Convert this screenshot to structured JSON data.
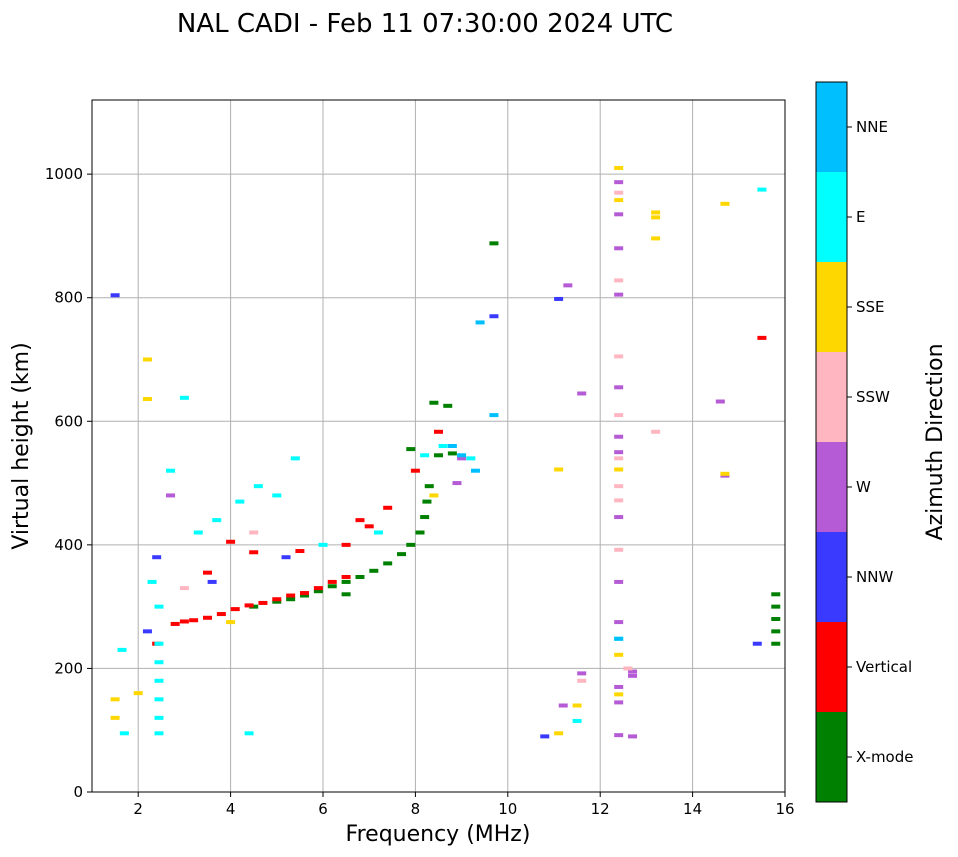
{
  "chart_data": {
    "type": "scatter",
    "title": "NAL CADI - Feb 11 07:30:00 2024 UTC",
    "xlabel": "Frequency (MHz)",
    "ylabel": "Virtual height (km)",
    "xlim": [
      1,
      16
    ],
    "ylim": [
      0,
      1120
    ],
    "xticks": [
      2,
      4,
      6,
      8,
      10,
      12,
      14,
      16
    ],
    "yticks": [
      0,
      200,
      400,
      600,
      800,
      1000
    ],
    "grid": true,
    "colorbar": {
      "label": "Azimuth Direction",
      "categories": [
        {
          "name": "X-mode",
          "color": "#008000"
        },
        {
          "name": "Vertical",
          "color": "#ff0000"
        },
        {
          "name": "NNW",
          "color": "#3a3aff"
        },
        {
          "name": "W",
          "color": "#b65bd6"
        },
        {
          "name": "SSW",
          "color": "#ffb6c1"
        },
        {
          "name": "SSE",
          "color": "#ffd700"
        },
        {
          "name": "E",
          "color": "#00ffff"
        },
        {
          "name": "NNE",
          "color": "#00bfff"
        }
      ]
    },
    "series": [
      {
        "name": "X-mode",
        "points": [
          [
            5.0,
            308
          ],
          [
            5.3,
            312
          ],
          [
            5.6,
            318
          ],
          [
            5.9,
            325
          ],
          [
            6.2,
            333
          ],
          [
            6.5,
            340
          ],
          [
            6.8,
            348
          ],
          [
            7.1,
            358
          ],
          [
            7.4,
            370
          ],
          [
            7.7,
            385
          ],
          [
            7.9,
            400
          ],
          [
            8.1,
            420
          ],
          [
            8.2,
            445
          ],
          [
            8.25,
            470
          ],
          [
            8.3,
            495
          ],
          [
            8.5,
            545
          ],
          [
            8.8,
            548
          ],
          [
            8.4,
            630
          ],
          [
            8.7,
            625
          ],
          [
            9.7,
            888
          ],
          [
            15.8,
            240
          ],
          [
            15.8,
            260
          ],
          [
            15.8,
            280
          ],
          [
            15.8,
            300
          ],
          [
            15.8,
            320
          ],
          [
            4.5,
            300
          ],
          [
            6.5,
            320
          ],
          [
            7.9,
            555
          ]
        ]
      },
      {
        "name": "Vertical",
        "points": [
          [
            2.8,
            272
          ],
          [
            3.0,
            276
          ],
          [
            3.2,
            278
          ],
          [
            3.5,
            282
          ],
          [
            3.8,
            288
          ],
          [
            4.1,
            296
          ],
          [
            4.4,
            302
          ],
          [
            4.7,
            306
          ],
          [
            5.0,
            312
          ],
          [
            5.3,
            318
          ],
          [
            5.6,
            322
          ],
          [
            5.9,
            330
          ],
          [
            6.2,
            340
          ],
          [
            6.5,
            348
          ],
          [
            3.5,
            355
          ],
          [
            4.5,
            388
          ],
          [
            5.5,
            390
          ],
          [
            6.5,
            400
          ],
          [
            7.0,
            430
          ],
          [
            7.4,
            460
          ],
          [
            8.0,
            520
          ],
          [
            8.5,
            583
          ],
          [
            15.5,
            735
          ],
          [
            2.4,
            240
          ],
          [
            4.0,
            405
          ],
          [
            6.8,
            440
          ]
        ]
      },
      {
        "name": "NNW",
        "points": [
          [
            1.5,
            804
          ],
          [
            2.4,
            380
          ],
          [
            5.2,
            380
          ],
          [
            9.7,
            770
          ],
          [
            10.8,
            90
          ],
          [
            15.4,
            240
          ],
          [
            11.1,
            798
          ],
          [
            2.2,
            260
          ],
          [
            3.6,
            340
          ]
        ]
      },
      {
        "name": "W",
        "points": [
          [
            12.4,
            987
          ],
          [
            12.4,
            935
          ],
          [
            12.4,
            880
          ],
          [
            12.4,
            805
          ],
          [
            12.4,
            655
          ],
          [
            12.4,
            575
          ],
          [
            12.4,
            550
          ],
          [
            12.4,
            445
          ],
          [
            12.4,
            340
          ],
          [
            12.4,
            275
          ],
          [
            12.4,
            170
          ],
          [
            12.4,
            145
          ],
          [
            12.4,
            92
          ],
          [
            12.7,
            90
          ],
          [
            12.7,
            195
          ],
          [
            12.7,
            188
          ],
          [
            14.6,
            632
          ],
          [
            14.7,
            512
          ],
          [
            11.3,
            820
          ],
          [
            11.6,
            645
          ],
          [
            11.6,
            192
          ],
          [
            8.9,
            500
          ],
          [
            9.0,
            540
          ],
          [
            2.7,
            480
          ],
          [
            11.2,
            140
          ]
        ]
      },
      {
        "name": "SSW",
        "points": [
          [
            12.4,
            970
          ],
          [
            12.4,
            828
          ],
          [
            12.4,
            705
          ],
          [
            12.4,
            610
          ],
          [
            12.4,
            472
          ],
          [
            12.4,
            392
          ],
          [
            13.2,
            583
          ],
          [
            12.4,
            540
          ],
          [
            12.4,
            495
          ],
          [
            3.0,
            330
          ],
          [
            4.5,
            420
          ],
          [
            11.6,
            180
          ],
          [
            12.6,
            200
          ]
        ]
      },
      {
        "name": "SSE",
        "points": [
          [
            12.4,
            1010
          ],
          [
            12.4,
            958
          ],
          [
            12.4,
            522
          ],
          [
            12.4,
            222
          ],
          [
            12.4,
            158
          ],
          [
            13.2,
            938
          ],
          [
            13.2,
            930
          ],
          [
            13.2,
            896
          ],
          [
            14.7,
            952
          ],
          [
            14.7,
            515
          ],
          [
            11.1,
            522
          ],
          [
            11.1,
            95
          ],
          [
            11.5,
            140
          ],
          [
            2.2,
            700
          ],
          [
            2.2,
            636
          ],
          [
            1.5,
            150
          ],
          [
            1.5,
            120
          ],
          [
            2.0,
            160
          ],
          [
            4.0,
            275
          ],
          [
            8.4,
            480
          ]
        ]
      },
      {
        "name": "E",
        "points": [
          [
            2.45,
            210
          ],
          [
            2.45,
            180
          ],
          [
            2.45,
            150
          ],
          [
            2.45,
            120
          ],
          [
            2.45,
            95
          ],
          [
            2.45,
            240
          ],
          [
            2.45,
            300
          ],
          [
            3.0,
            638
          ],
          [
            4.4,
            95
          ],
          [
            3.3,
            420
          ],
          [
            3.7,
            440
          ],
          [
            4.2,
            470
          ],
          [
            4.6,
            495
          ],
          [
            5.0,
            480
          ],
          [
            5.4,
            540
          ],
          [
            6.0,
            400
          ],
          [
            7.2,
            420
          ],
          [
            8.2,
            545
          ],
          [
            8.6,
            560
          ],
          [
            9.2,
            540
          ],
          [
            12.4,
            248
          ],
          [
            11.5,
            115
          ],
          [
            15.5,
            975
          ],
          [
            1.7,
            95
          ],
          [
            1.65,
            230
          ],
          [
            2.7,
            520
          ],
          [
            2.3,
            340
          ]
        ]
      },
      {
        "name": "NNE",
        "points": [
          [
            9.7,
            610
          ],
          [
            9.4,
            760
          ],
          [
            9.0,
            545
          ],
          [
            9.3,
            520
          ],
          [
            8.8,
            560
          ],
          [
            12.4,
            248
          ]
        ]
      }
    ]
  }
}
